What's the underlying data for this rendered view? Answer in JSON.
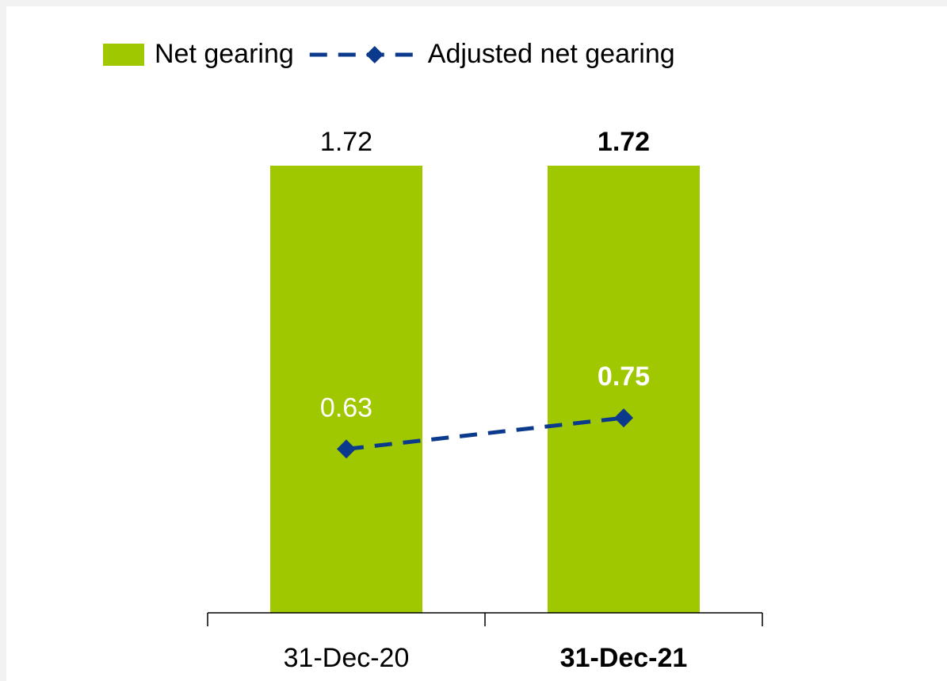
{
  "chart_data": {
    "type": "bar",
    "categories": [
      "31-Dec-20",
      "31-Dec-21"
    ],
    "series": [
      {
        "name": "Net gearing",
        "type": "bar",
        "color": "#a0c800",
        "values": [
          1.72,
          1.72
        ]
      },
      {
        "name": "Adjusted net gearing",
        "type": "line",
        "color": "#0b3a8c",
        "values": [
          0.63,
          0.75
        ]
      }
    ],
    "legend": "top"
  }
}
